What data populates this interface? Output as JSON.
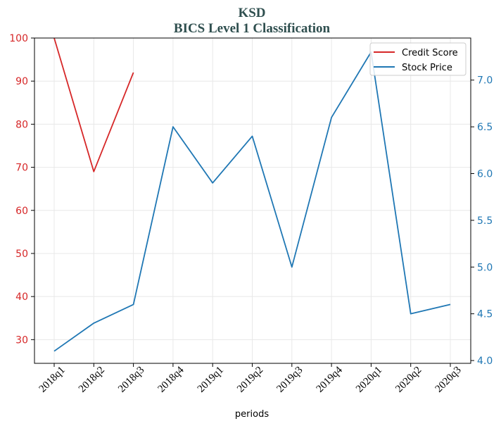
{
  "chart_data": {
    "type": "line",
    "title": "KSD",
    "subtitle": "BICS Level 1 Classification",
    "xlabel": "periods",
    "categories": [
      "2018q1",
      "2018q2",
      "2018q3",
      "2018q4",
      "2019q1",
      "2019q2",
      "2019q3",
      "2019q4",
      "2020q1",
      "2020q2",
      "2020q3"
    ],
    "left_axis": {
      "ylim": [
        24.5,
        100
      ],
      "ticks": [
        "30",
        "40",
        "50",
        "60",
        "70",
        "80",
        "90",
        "100"
      ],
      "color": "#d62728"
    },
    "right_axis": {
      "ylim": [
        3.97,
        7.45
      ],
      "ticks": [
        "4.0",
        "4.5",
        "5.0",
        "5.5",
        "6.0",
        "6.5",
        "7.0"
      ],
      "color": "#1f77b4"
    },
    "series": [
      {
        "name": "Credit Score",
        "axis": "left",
        "color": "#d62728",
        "values": [
          100,
          69,
          92,
          null,
          null,
          null,
          null,
          null,
          null,
          null,
          null
        ]
      },
      {
        "name": "Stock Price",
        "axis": "right",
        "color": "#1f77b4",
        "values": [
          4.1,
          4.4,
          4.6,
          6.5,
          5.9,
          6.4,
          5.0,
          6.6,
          7.3,
          4.5,
          4.6
        ]
      }
    ],
    "grid": true,
    "legend_position": "top-right"
  }
}
